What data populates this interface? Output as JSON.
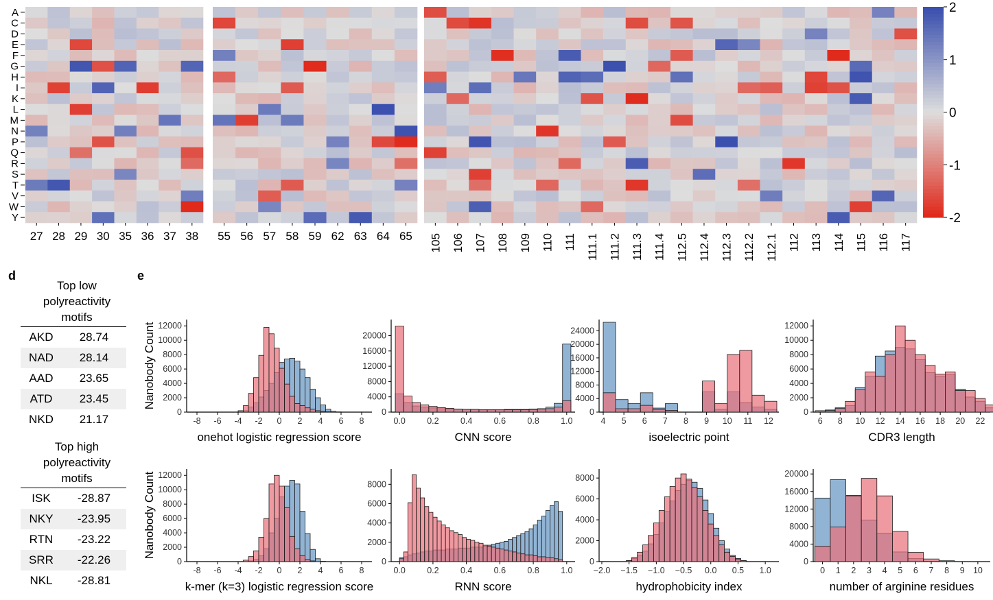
{
  "panel_labels": [
    "d",
    "e"
  ],
  "heatmap": {
    "rows": [
      "A",
      "C",
      "D",
      "E",
      "F",
      "G",
      "H",
      "I",
      "K",
      "L",
      "M",
      "N",
      "P",
      "Q",
      "R",
      "S",
      "T",
      "V",
      "W",
      "Y"
    ],
    "group1_cols": [
      "27",
      "28",
      "29",
      "30",
      "35",
      "36",
      "37",
      "38"
    ],
    "group2_cols": [
      "55",
      "56",
      "57",
      "58",
      "59",
      "62",
      "63",
      "64",
      "65"
    ],
    "group3_cols": [
      "105",
      "106",
      "107",
      "108",
      "109",
      "110",
      "111",
      "111.1",
      "111.2",
      "111.3",
      "111.4",
      "112.5",
      "112.4",
      "112.3",
      "112.2",
      "112.1",
      "112",
      "113",
      "114",
      "115",
      "116",
      "117"
    ],
    "colorbar_ticks": [
      "2",
      "1",
      "0",
      "-1",
      "-2"
    ],
    "colorbar_range": [
      -2,
      2
    ],
    "colors": {
      "high": "#3a4fae",
      "mid": "#dddddd",
      "low": "#e02a1c"
    }
  },
  "tables": {
    "low": {
      "title_lines": [
        "Top low",
        "polyreactivity",
        "motifs"
      ],
      "rows": [
        {
          "motif": "AKD",
          "value": "28.74"
        },
        {
          "motif": "NAD",
          "value": "28.14"
        },
        {
          "motif": "AAD",
          "value": "23.65"
        },
        {
          "motif": "ATD",
          "value": "23.45"
        },
        {
          "motif": "NKD",
          "value": "21.17"
        }
      ]
    },
    "high": {
      "title_lines": [
        "Top high",
        "polyreactivity",
        "motifs"
      ],
      "rows": [
        {
          "motif": "ISK",
          "value": "-28.87"
        },
        {
          "motif": "NKY",
          "value": "-23.95"
        },
        {
          "motif": "RTN",
          "value": "-23.22"
        },
        {
          "motif": "SRR",
          "value": "-22.26"
        },
        {
          "motif": "NKL",
          "value": "-28.81"
        }
      ]
    }
  },
  "series_colors": {
    "blue": "#7fa7cc",
    "red": "#e9717b"
  },
  "y_axis_label": "Nanobody Count",
  "chart_data": [
    {
      "type": "bar",
      "title": "onehot logistic regression score",
      "xlabel": "onehot logistic regression score",
      "ylabel": "Nanobody Count",
      "xlim": [
        -9,
        9
      ],
      "ylim": [
        0,
        12500
      ],
      "xticks": [
        -8,
        -6,
        -4,
        -2,
        0,
        2,
        4,
        6,
        8
      ],
      "xtick_labels": [
        "-8",
        "-6",
        "-4",
        "-2",
        "0",
        "2",
        "4",
        "6",
        "8"
      ],
      "yticks": [
        0,
        2000,
        4000,
        6000,
        8000,
        10000,
        12000
      ],
      "ytick_labels": [
        "0",
        "2000",
        "4000",
        "6000",
        "8000",
        "10000",
        "12000"
      ],
      "bin_start": -8,
      "bin_width": 0.5,
      "series": [
        {
          "name": "blue",
          "values": [
            0,
            0,
            0,
            0,
            0,
            0,
            0,
            0,
            50,
            200,
            700,
            1300,
            2100,
            3000,
            4000,
            5500,
            6900,
            7400,
            7500,
            7100,
            6000,
            4800,
            3200,
            2000,
            1000,
            400,
            120,
            30,
            0,
            0,
            0,
            0,
            0
          ]
        },
        {
          "name": "red",
          "values": [
            0,
            0,
            0,
            0,
            0,
            0,
            0,
            0,
            200,
            900,
            2600,
            4800,
            7900,
            11800,
            10900,
            8900,
            6100,
            3900,
            2200,
            1200,
            900,
            600,
            400,
            200,
            100,
            50,
            0,
            0,
            0,
            0,
            0,
            0,
            0
          ]
        }
      ]
    },
    {
      "type": "bar",
      "title": "CNN score",
      "xlabel": "CNN score",
      "ylabel": "",
      "xlim": [
        -0.05,
        1.05
      ],
      "ylim": [
        0,
        23500
      ],
      "xticks": [
        0,
        0.2,
        0.4,
        0.6,
        0.8,
        1.0
      ],
      "xtick_labels": [
        "0.0",
        "0.2",
        "0.4",
        "0.6",
        "0.8",
        "1.0"
      ],
      "yticks": [
        0,
        4000,
        8000,
        12000,
        16000,
        20000
      ],
      "ytick_labels": [
        "0",
        "4000",
        "8000",
        "12000",
        "16000",
        "20000"
      ],
      "bin_start": -0.025,
      "bin_width": 0.05,
      "bin_count": 21,
      "series": [
        {
          "name": "blue",
          "values": [
            4800,
            2500,
            1600,
            1300,
            1100,
            900,
            800,
            700,
            700,
            700,
            600,
            600,
            600,
            700,
            700,
            700,
            800,
            900,
            1300,
            2300,
            17800
          ]
        },
        {
          "name": "red",
          "values": [
            22500,
            4200,
            2500,
            1900,
            1500,
            1200,
            1000,
            800,
            700,
            700,
            600,
            600,
            600,
            600,
            600,
            600,
            700,
            800,
            900,
            1300,
            3000
          ]
        }
      ]
    },
    {
      "type": "bar",
      "title": "isoelectric point",
      "xlabel": "isoelectric point",
      "ylabel": "",
      "xlim": [
        3.8,
        12.5
      ],
      "ylim": [
        0,
        26500
      ],
      "xticks": [
        4,
        5,
        6,
        7,
        8,
        9,
        10,
        11,
        12
      ],
      "xtick_labels": [
        "4",
        "5",
        "6",
        "7",
        "8",
        "9",
        "10",
        "11",
        "12"
      ],
      "yticks": [
        0,
        4000,
        8000,
        12000,
        16000,
        20000,
        24000
      ],
      "ytick_labels": [
        "0",
        "4000",
        "8000",
        "12000",
        "16000",
        "20000",
        "24000"
      ],
      "bin_start": 4,
      "bin_width": 0.6,
      "series": [
        {
          "name": "blue",
          "values": [
            26500,
            3700,
            2500,
            5700,
            1200,
            2500,
            0,
            0,
            6000,
            800,
            6000,
            2800,
            1500,
            800
          ]
        },
        {
          "name": "red",
          "values": [
            5700,
            1000,
            1000,
            2000,
            800,
            500,
            0,
            0,
            9200,
            2500,
            17000,
            18200,
            5000,
            3200
          ]
        }
      ]
    },
    {
      "type": "bar",
      "title": "CDR3 length",
      "xlabel": "CDR3 length",
      "ylabel": "",
      "xlim": [
        5.3,
        23
      ],
      "ylim": [
        0,
        12500
      ],
      "xticks": [
        6,
        8,
        10,
        12,
        14,
        16,
        18,
        20,
        22
      ],
      "xtick_labels": [
        "6",
        "8",
        "10",
        "12",
        "14",
        "16",
        "18",
        "20",
        "22"
      ],
      "yticks": [
        0,
        2000,
        4000,
        6000,
        8000,
        10000,
        12000
      ],
      "ytick_labels": [
        "0",
        "2000",
        "4000",
        "6000",
        "8000",
        "10000",
        "12000"
      ],
      "bin_start": 5.5,
      "bin_width": 1,
      "series": [
        {
          "name": "blue",
          "values": [
            200,
            300,
            600,
            900,
            3400,
            5000,
            7800,
            8500,
            9000,
            8800,
            7300,
            5500,
            5000,
            5200,
            3200,
            2100,
            1500,
            600
          ]
        },
        {
          "name": "red",
          "values": [
            200,
            200,
            500,
            1500,
            3100,
            5600,
            5000,
            8000,
            12000,
            10000,
            8000,
            6500,
            5300,
            5600,
            3000,
            3000,
            1900,
            1000
          ]
        }
      ]
    },
    {
      "type": "bar",
      "title": "k-mer (k=3) logistic regression score",
      "xlabel": "k-mer (k=3) logistic regression score",
      "ylabel": "Nanobody Count",
      "xlim": [
        -9,
        9
      ],
      "ylim": [
        0,
        12500
      ],
      "xticks": [
        -8,
        -6,
        -4,
        -2,
        0,
        2,
        4,
        6,
        8
      ],
      "xtick_labels": [
        "-8",
        "-6",
        "-4",
        "-2",
        "0",
        "2",
        "4",
        "6",
        "8"
      ],
      "yticks": [
        0,
        2000,
        4000,
        6000,
        8000,
        10000,
        12000
      ],
      "ytick_labels": [
        "0",
        "2000",
        "4000",
        "6000",
        "8000",
        "10000",
        "12000"
      ],
      "bin_start": -8,
      "bin_width": 0.5,
      "series": [
        {
          "name": "blue",
          "values": [
            0,
            0,
            0,
            0,
            0,
            0,
            0,
            0,
            0,
            0,
            100,
            300,
            800,
            1800,
            4000,
            6000,
            9000,
            10500,
            11300,
            10800,
            7000,
            3900,
            1700,
            400,
            50,
            0,
            0,
            0,
            0,
            0,
            0,
            0,
            0
          ]
        },
        {
          "name": "red",
          "values": [
            0,
            0,
            0,
            0,
            0,
            0,
            0,
            0,
            0,
            200,
            700,
            1500,
            3400,
            6000,
            10800,
            12000,
            10500,
            7500,
            3500,
            1800,
            800,
            300,
            100,
            0,
            0,
            0,
            0,
            0,
            0,
            0,
            0,
            0,
            0
          ]
        }
      ]
    },
    {
      "type": "bar",
      "title": "RNN score",
      "xlabel": "RNN score",
      "ylabel": "",
      "xlim": [
        -0.05,
        1.05
      ],
      "ylim": [
        0,
        9300
      ],
      "xticks": [
        0,
        0.2,
        0.4,
        0.6,
        0.8,
        1.0
      ],
      "xtick_labels": [
        "0.0",
        "0.2",
        "0.4",
        "0.6",
        "0.8",
        "1.0"
      ],
      "yticks": [
        0,
        2000,
        4000,
        6000,
        8000
      ],
      "ytick_labels": [
        "0",
        "2000",
        "4000",
        "6000",
        "8000"
      ],
      "bin_start": 0,
      "bin_width": 0.025,
      "bin_count": 40,
      "series": [
        {
          "name": "blue",
          "values": [
            400,
            500,
            700,
            800,
            900,
            1000,
            1100,
            1100,
            1200,
            1200,
            1200,
            1300,
            1300,
            1300,
            1400,
            1400,
            1400,
            1500,
            1500,
            1500,
            1600,
            1700,
            1800,
            1900,
            2000,
            2100,
            2300,
            2500,
            2700,
            2900,
            3100,
            3400,
            3800,
            4300,
            4700,
            5300,
            5800,
            6200,
            5200,
            0
          ]
        },
        {
          "name": "red",
          "values": [
            300,
            1000,
            6100,
            9000,
            7600,
            6600,
            5700,
            5100,
            4600,
            4200,
            3800,
            3500,
            3200,
            3000,
            2800,
            2500,
            2300,
            2200,
            2000,
            1900,
            1700,
            1600,
            1500,
            1400,
            1300,
            1200,
            1100,
            1000,
            900,
            800,
            700,
            700,
            600,
            500,
            500,
            400,
            400,
            300,
            200,
            0
          ]
        }
      ]
    },
    {
      "type": "bar",
      "title": "hydrophobicity index",
      "xlabel": "hydrophobicity index",
      "ylabel": "",
      "xlim": [
        -2.05,
        1.25
      ],
      "ylim": [
        0,
        8600
      ],
      "xticks": [
        -2.0,
        -1.5,
        -1.0,
        -0.5,
        0.0,
        0.5,
        1.0
      ],
      "xtick_labels": [
        "−2.0",
        "−1.5",
        "−1.0",
        "−0.5",
        "0.0",
        "0.5",
        "1.0"
      ],
      "yticks": [
        0,
        2000,
        4000,
        6000,
        8000
      ],
      "ytick_labels": [
        "0",
        "2000",
        "4000",
        "6000",
        "8000"
      ],
      "bin_start": -1.95,
      "bin_width": 0.1,
      "series": [
        {
          "name": "blue",
          "values": [
            0,
            0,
            0,
            0,
            100,
            300,
            600,
            1000,
            1700,
            2600,
            3700,
            4800,
            5800,
            6800,
            7400,
            7800,
            7600,
            7000,
            5900,
            4600,
            3200,
            2000,
            1200,
            600,
            300,
            100,
            0,
            0,
            0,
            0,
            0,
            0,
            0
          ]
        },
        {
          "name": "red",
          "values": [
            0,
            0,
            0,
            0,
            100,
            400,
            900,
            1600,
            2500,
            3700,
            4900,
            6200,
            7200,
            8000,
            8400,
            7900,
            7100,
            6200,
            4900,
            3600,
            2500,
            1600,
            900,
            500,
            200,
            100,
            0,
            0,
            0,
            0,
            0,
            0,
            0
          ]
        }
      ]
    },
    {
      "type": "bar",
      "title": "number of arginine residues",
      "xlabel": "number of arginine residues",
      "ylabel": "",
      "xlim": [
        -0.6,
        10.8
      ],
      "ylim": [
        0,
        20500
      ],
      "xticks": [
        0,
        1,
        2,
        3,
        4,
        5,
        6,
        7,
        8,
        9,
        10
      ],
      "xtick_labels": [
        "0",
        "1",
        "2",
        "3",
        "4",
        "5",
        "6",
        "7",
        "8",
        "9",
        "10"
      ],
      "yticks": [
        0,
        4000,
        8000,
        12000,
        16000,
        20000
      ],
      "ytick_labels": [
        "0",
        "4000",
        "8000",
        "12000",
        "16000",
        "20000"
      ],
      "bin_start": -0.5,
      "bin_width": 1,
      "series": [
        {
          "name": "blue",
          "values": [
            14500,
            18700,
            15100,
            9500,
            6500,
            2200,
            700,
            100,
            0,
            0,
            0
          ]
        },
        {
          "name": "red",
          "values": [
            3500,
            7900,
            15000,
            19000,
            15000,
            6900,
            2100,
            600,
            200,
            0,
            0
          ]
        }
      ]
    }
  ]
}
